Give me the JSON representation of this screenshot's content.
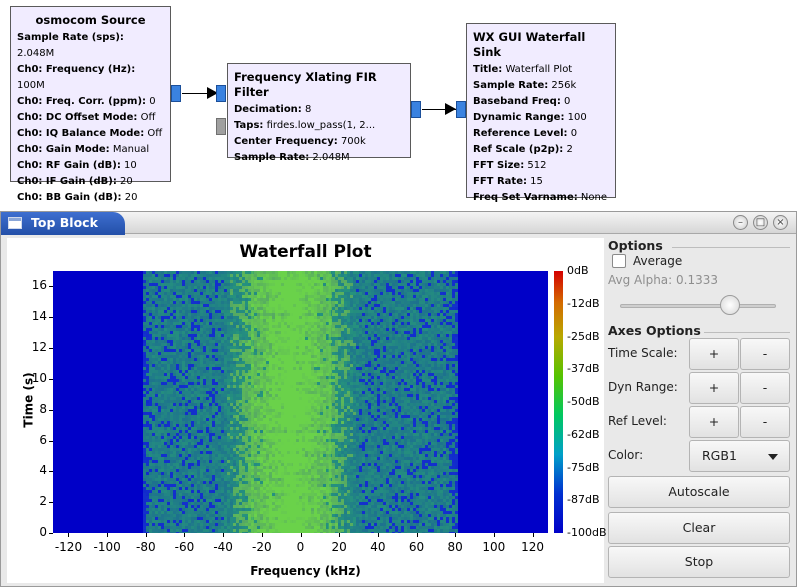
{
  "source_block": {
    "title": "osmocom Source",
    "rows": [
      {
        "k": "Sample Rate (sps):",
        "v": "2.048M"
      },
      {
        "k": "Ch0: Frequency (Hz):",
        "v": "100M"
      },
      {
        "k": "Ch0: Freq. Corr. (ppm):",
        "v": "0"
      },
      {
        "k": "Ch0: DC Offset Mode:",
        "v": "Off"
      },
      {
        "k": "Ch0: IQ Balance Mode:",
        "v": "Off"
      },
      {
        "k": "Ch0: Gain Mode:",
        "v": "Manual"
      },
      {
        "k": "Ch0: RF Gain (dB):",
        "v": "10"
      },
      {
        "k": "Ch0: IF Gain (dB):",
        "v": "20"
      },
      {
        "k": "Ch0: BB Gain (dB):",
        "v": "20"
      }
    ]
  },
  "filter_block": {
    "title": "Frequency Xlating FIR Filter",
    "rows": [
      {
        "k": "Decimation:",
        "v": "8"
      },
      {
        "k": "Taps:",
        "v": "firdes.low_pass(1, 2..."
      },
      {
        "k": "Center Frequency:",
        "v": "700k"
      },
      {
        "k": "Sample Rate:",
        "v": "2.048M"
      }
    ]
  },
  "sink_block": {
    "title": "WX GUI Waterfall Sink",
    "rows": [
      {
        "k": "Title:",
        "v": "Waterfall Plot"
      },
      {
        "k": "Sample Rate:",
        "v": "256k"
      },
      {
        "k": "Baseband Freq:",
        "v": "0"
      },
      {
        "k": "Dynamic Range:",
        "v": "100"
      },
      {
        "k": "Reference Level:",
        "v": "0"
      },
      {
        "k": "Ref Scale (p2p):",
        "v": "2"
      },
      {
        "k": "FFT Size:",
        "v": "512"
      },
      {
        "k": "FFT Rate:",
        "v": "15"
      },
      {
        "k": "Freq Set Varname:",
        "v": "None"
      }
    ]
  },
  "window": {
    "title": "Top Block",
    "buttons": {
      "minimize": "–",
      "maximize": "□",
      "close": "×"
    }
  },
  "chart_data": {
    "type": "heatmap",
    "title": "Waterfall Plot",
    "xlabel": "Frequency (kHz)",
    "ylabel": "Time (s)",
    "x_ticks": [
      "-120",
      "-100",
      "-80",
      "-60",
      "-40",
      "-20",
      "0",
      "20",
      "40",
      "60",
      "80",
      "100",
      "120"
    ],
    "y_ticks": [
      "0",
      "2",
      "4",
      "6",
      "8",
      "10",
      "12",
      "14",
      "16"
    ],
    "xlim": [
      -128,
      128
    ],
    "ylim": [
      0,
      17
    ],
    "colorbar_labels": [
      "0dB",
      "-12dB",
      "-25dB",
      "-37dB",
      "-50dB",
      "-62dB",
      "-75dB",
      "-87dB",
      "-100dB"
    ],
    "colorbar_range_db": [
      -100,
      0
    ],
    "passband_khz": [
      -80,
      80
    ],
    "signal_center_khz": -5,
    "signal_width_khz": 60,
    "carrier_lines_khz": [
      -25,
      -5,
      15
    ],
    "colors": {
      "floor": "#0000c8",
      "noise": "#1f4fcf",
      "signal": "#2fb86a",
      "peak": "#6ad24a"
    }
  },
  "options": {
    "section_title": "Options",
    "average_label": "Average",
    "average_checked": false,
    "avg_alpha_label": "Avg Alpha: 0.1333",
    "avg_alpha_value": 0.1333,
    "axes_title": "Axes Options",
    "time_scale_label": "Time Scale:",
    "dyn_range_label": "Dyn Range:",
    "ref_level_label": "Ref Level:",
    "plus_label": "+",
    "minus_label": "-",
    "color_label": "Color:",
    "color_value": "RGB1",
    "autoscale_label": "Autoscale",
    "clear_label": "Clear",
    "stop_label": "Stop"
  }
}
